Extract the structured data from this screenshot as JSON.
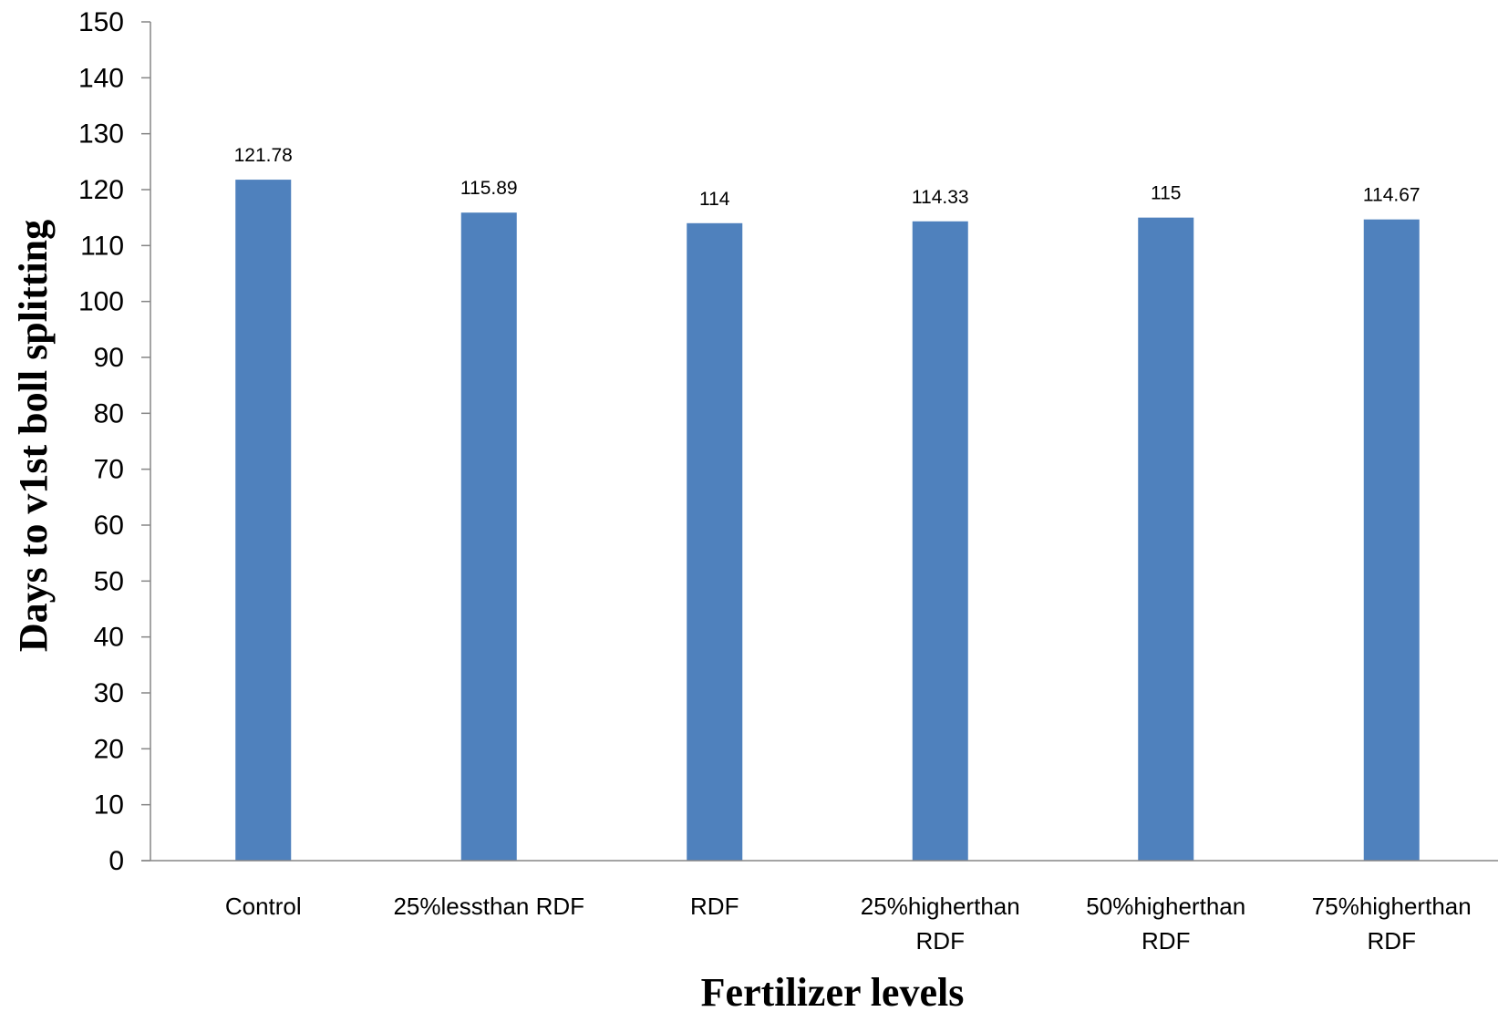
{
  "chart_data": {
    "type": "bar",
    "categories": [
      [
        "Control"
      ],
      [
        "25%lessthan RDF"
      ],
      [
        "RDF"
      ],
      [
        "25%higherthan",
        "RDF"
      ],
      [
        "50%higherthan",
        "RDF"
      ],
      [
        "75%higherthan",
        "RDF"
      ]
    ],
    "values": [
      121.78,
      115.89,
      114,
      114.33,
      115,
      114.67
    ],
    "data_labels": [
      "121.78",
      "115.89",
      "114",
      "114.33",
      "115",
      "114.67"
    ],
    "title": "",
    "xlabel": "Fertilizer levels",
    "ylabel": "Days to v1st boll splitting",
    "ylim": [
      0,
      150
    ],
    "yticks": [
      0,
      10,
      20,
      30,
      40,
      50,
      60,
      70,
      80,
      90,
      100,
      110,
      120,
      130,
      140,
      150
    ],
    "bar_color": "#4F81BD",
    "grid": false,
    "legend": "none"
  }
}
